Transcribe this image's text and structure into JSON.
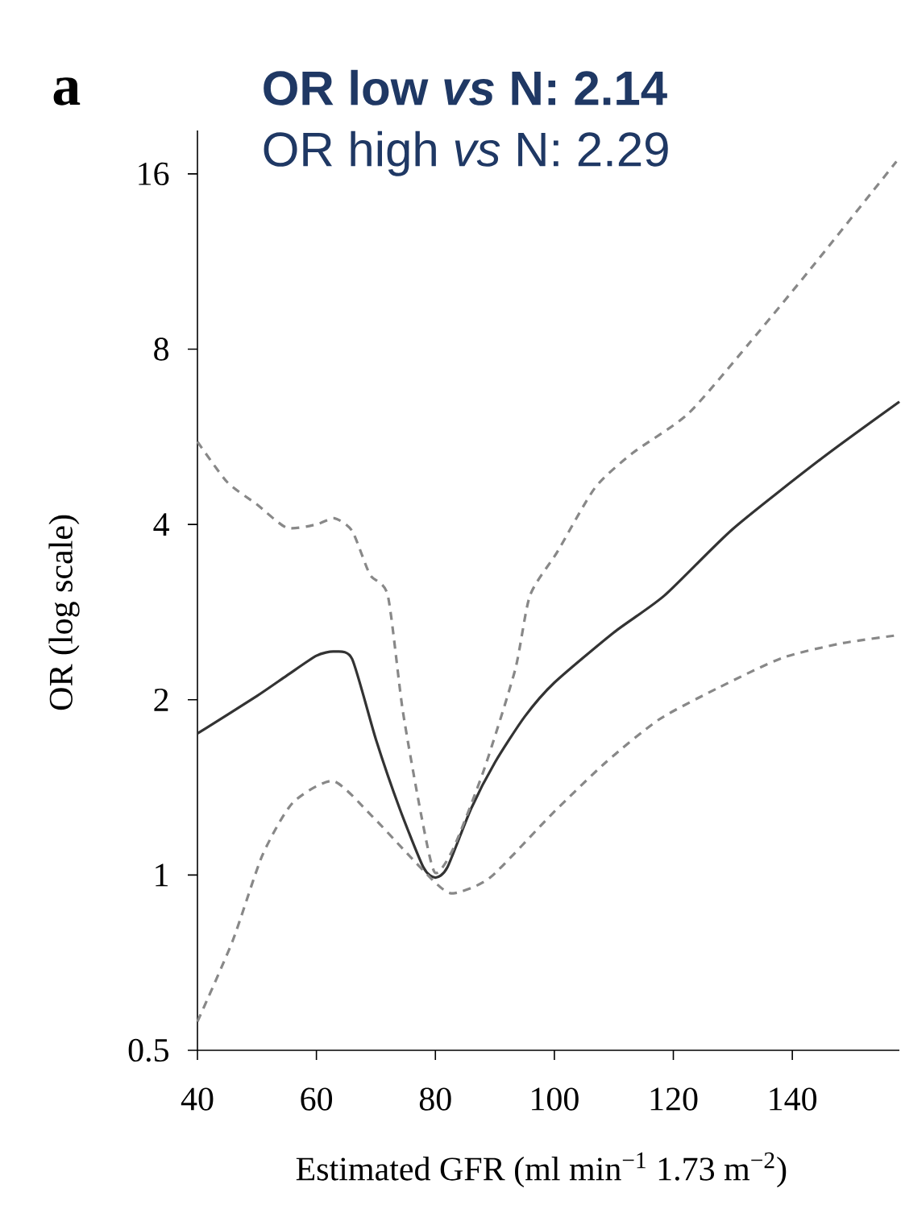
{
  "chart_data": {
    "type": "line",
    "title": "OR low *vs* N: 2.14",
    "subtitle": "OR high *vs* N: 2.29",
    "xlabel": "Estimated GFR (ml min$^{−1}$ 1.73 m$^{−2}$)",
    "ylabel": "OR (log scale)",
    "annotations": [
      "a"
    ],
    "log": "y",
    "grid": false,
    "marker": "none",
    "xlim": [
      40,
      158
    ],
    "xticks": [
      40,
      60,
      80,
      100,
      120,
      140
    ],
    "ylim": [
      0.5,
      19
    ],
    "yticks": [
      0.5,
      1,
      2,
      4,
      8,
      16
    ],
    "series": [
      {
        "color": "#333333",
        "line_style": "solid",
        "x": [
          40,
          50,
          55,
          60,
          63,
          66,
          70,
          74,
          78,
          80,
          82,
          86,
          90,
          95,
          100,
          110,
          118.5,
          130,
          145,
          158
        ],
        "values": [
          1.75,
          2.03,
          2.2,
          2.38,
          2.42,
          2.35,
          1.71,
          1.3,
          1.03,
          0.99,
          1.03,
          1.3,
          1.56,
          1.87,
          2.14,
          2.61,
          3.02,
          3.93,
          5.2,
          6.5
        ]
      },
      {
        "color": "#888888",
        "line_style": "dashed",
        "x": [
          40,
          45,
          50,
          55,
          60,
          63,
          66,
          69,
          72,
          74.5,
          77.6,
          79.9,
          83,
          88.2,
          93.4,
          95.9,
          100.5,
          106.8,
          113.1,
          122.5,
          132.8,
          143.1,
          157.5
        ],
        "values": [
          5.55,
          4.73,
          4.33,
          3.95,
          4.0,
          4.1,
          3.9,
          3.28,
          3.02,
          1.92,
          1.27,
          1.01,
          1.11,
          1.52,
          2.25,
          3.02,
          3.59,
          4.62,
          5.3,
          6.2,
          8.2,
          11,
          16.8
        ]
      },
      {
        "color": "#888888",
        "line_style": "dashed",
        "x": [
          40,
          45.9,
          50.9,
          56,
          62.8,
          69.1,
          74.5,
          80,
          83,
          89.2,
          99.5,
          108.6,
          117.6,
          127.7,
          138.3,
          148.3,
          157.5
        ],
        "values": [
          0.56,
          0.77,
          1.08,
          1.33,
          1.45,
          1.27,
          1.11,
          0.97,
          0.93,
          0.99,
          1.27,
          1.56,
          1.85,
          2.1,
          2.36,
          2.5,
          2.58
        ]
      }
    ]
  }
}
